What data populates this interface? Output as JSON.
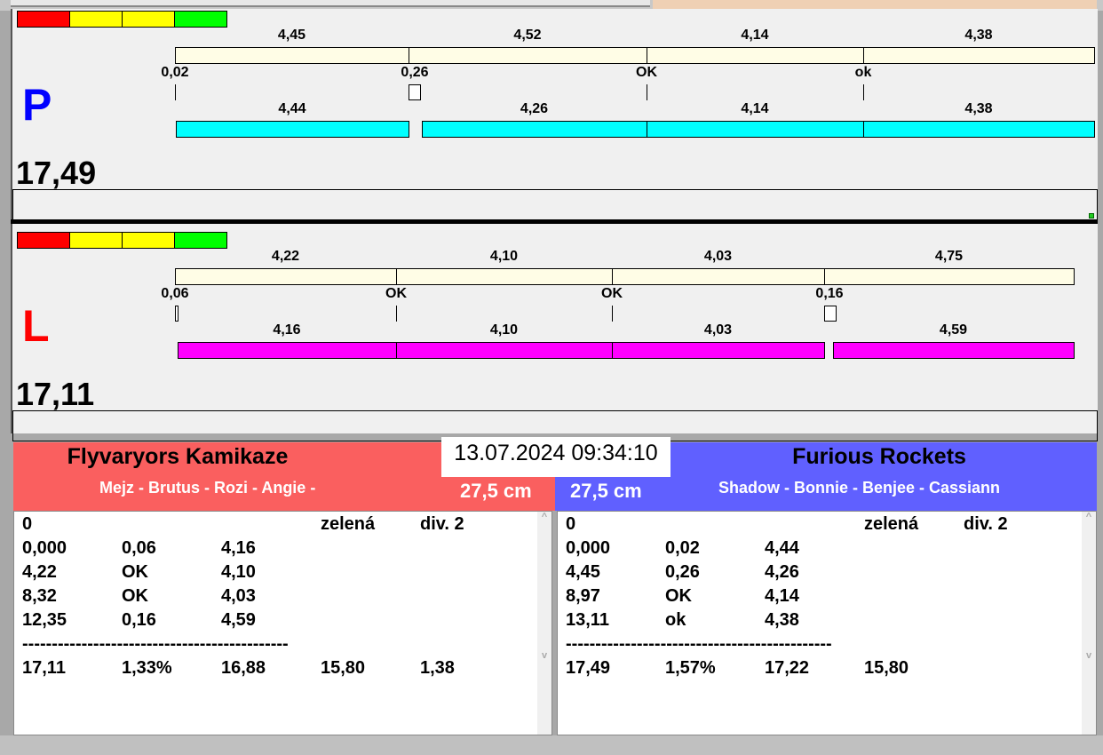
{
  "colors": {
    "red": "#ff0000",
    "yellow": "#ffff00",
    "green": "#00ff00",
    "top_bar": "#fffde6",
    "p_bar": "#00ffff",
    "l_bar": "#ff00ff",
    "p_letter": "#0000ff",
    "l_letter": "#ff0000",
    "left_team_bg": "#fa5f5f",
    "right_team_bg": "#6060ff"
  },
  "lanes": [
    {
      "letter": "P",
      "total": "17,49",
      "top_values": [
        "4,45",
        "4,52",
        "4,14",
        "4,38"
      ],
      "marks": [
        "0,02",
        "0,26",
        "OK",
        "ok"
      ],
      "bottom_values": [
        "4,44",
        "4,26",
        "4,14",
        "4,38"
      ]
    },
    {
      "letter": "L",
      "total": "17,11",
      "top_values": [
        "4,22",
        "4,10",
        "4,03",
        "4,75"
      ],
      "marks": [
        "0,06",
        "OK",
        "OK",
        "0,16"
      ],
      "bottom_values": [
        "4,16",
        "4,10",
        "4,03",
        "4,59"
      ]
    }
  ],
  "datetime": "13.07.2024 09:34:10",
  "left_team": {
    "name": "Flyvaryors Kamikaze",
    "members": "Mejz - Brutus - Rozi - Angie -",
    "size": "27,5 cm",
    "rows": [
      [
        "0",
        "",
        "",
        "zelená",
        "div. 2"
      ],
      [
        "0,000",
        "0,06",
        "4,16"
      ],
      [
        "4,22",
        "OK",
        "4,10"
      ],
      [
        "8,32",
        "OK",
        "4,03"
      ],
      [
        "12,35",
        "0,16",
        "4,59"
      ],
      [
        "---------------------------------------------"
      ],
      [
        "17,11",
        "1,33%",
        "16,88",
        "15,80",
        "1,38"
      ]
    ]
  },
  "right_team": {
    "name": "Furious Rockets",
    "members": "Shadow - Bonnie - Benjee - Cassiann",
    "size": "27,5 cm",
    "rows": [
      [
        "0",
        "",
        "",
        "zelená",
        "div. 2"
      ],
      [
        "0,000",
        "0,02",
        "4,44"
      ],
      [
        "4,45",
        "0,26",
        "4,26"
      ],
      [
        "8,97",
        "OK",
        "4,14"
      ],
      [
        "13,11",
        "ok",
        "4,38"
      ],
      [
        "---------------------------------------------"
      ],
      [
        "17,49",
        "1,57%",
        "17,22",
        "15,80"
      ]
    ]
  }
}
